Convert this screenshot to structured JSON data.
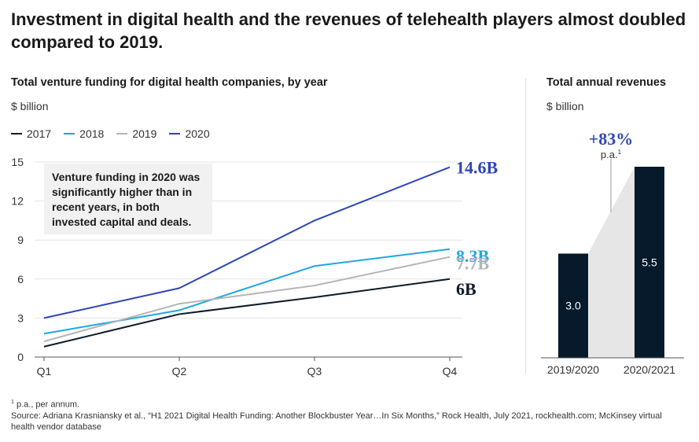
{
  "headline": "Investment in digital health and the revenues of telehealth players almost doubled compared to 2019.",
  "chart_data": [
    {
      "type": "line",
      "title": "Total venture funding for digital health companies, by year",
      "ylabel": "$ billion",
      "categories": [
        "Q1",
        "Q2",
        "Q3",
        "Q4"
      ],
      "ylim": [
        0,
        15
      ],
      "yticks": [
        0,
        3,
        6,
        9,
        12,
        15
      ],
      "grid": true,
      "legend_position": "top-left",
      "series": [
        {
          "name": "2017",
          "color": "#0d1b2a",
          "values": [
            0.8,
            3.3,
            4.6,
            6.0
          ],
          "end_label": "6B"
        },
        {
          "name": "2018",
          "color": "#1ea7e1",
          "values": [
            1.8,
            3.6,
            7.0,
            8.3
          ],
          "end_label": "8.3B"
        },
        {
          "name": "2019",
          "color": "#b4b4b4",
          "values": [
            1.2,
            4.1,
            5.5,
            7.7
          ],
          "end_label": "7.7B"
        },
        {
          "name": "2020",
          "color": "#2e46b4",
          "values": [
            3.0,
            5.3,
            10.5,
            14.6
          ],
          "end_label": "14.6B"
        }
      ],
      "annotation": "Venture funding in 2020 was significantly higher than in recent years, in both invested capital and deals."
    },
    {
      "type": "bar",
      "title": "Total annual revenues",
      "ylabel": "$ billion",
      "categories": [
        "2019/2020",
        "2020/2021"
      ],
      "values": [
        3.0,
        5.5
      ],
      "value_labels": [
        "3.0",
        "5.5"
      ],
      "bar_color": "#061a2c",
      "growth_label": "+83%",
      "growth_sub": "p.a.",
      "growth_sup": "1",
      "growth_color": "#2e46b4"
    }
  ],
  "footnotes": {
    "note_marker": "1",
    "note": "p.a., per annum.",
    "source": "Source: Adriana Krasniansky et al., “H1 2021 Digital Health Funding: Another Blockbuster Year…In Six Months,” Rock Health, July 2021, rockhealth.com; McKinsey virtual health vendor database"
  }
}
